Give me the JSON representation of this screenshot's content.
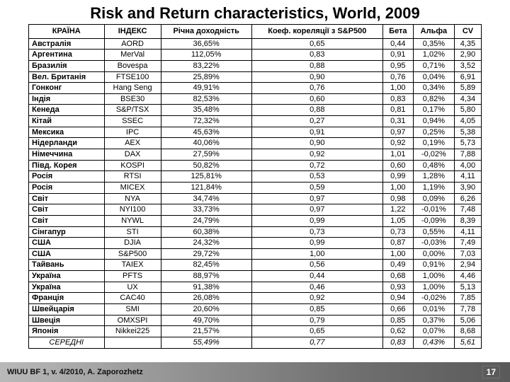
{
  "title": "Risk and Return characteristics, World, 2009",
  "footer": {
    "left": "WIUU BF 1, v. 4/2010, A. Zaporozhetz",
    "page": "17"
  },
  "title_fontsize": 22,
  "table": {
    "headers": [
      "КРАЇНА",
      "ІНДЕКС",
      "Річна доходність",
      "Коеф. кореляції з S&P500",
      "Бета",
      "Альфа",
      "CV"
    ],
    "rows": [
      [
        "Австралія",
        "AORD",
        "36,65%",
        "0,65",
        "0,44",
        "0,35%",
        "4,35"
      ],
      [
        "Аргентина",
        "MerVal",
        "112,05%",
        "0,83",
        "0,91",
        "1,02%",
        "2,90"
      ],
      [
        "Бразилія",
        "Bovespa",
        "83,22%",
        "0,88",
        "0,95",
        "0,71%",
        "3,52"
      ],
      [
        "Вел. Британія",
        "FTSE100",
        "25,89%",
        "0,90",
        "0,76",
        "0,04%",
        "6,91"
      ],
      [
        "Гонконг",
        "Hang Seng",
        "49,91%",
        "0,76",
        "1,00",
        "0,34%",
        "5,89"
      ],
      [
        "Індія",
        "BSE30",
        "82,53%",
        "0,60",
        "0,83",
        "0,82%",
        "4,34"
      ],
      [
        "Кенеда",
        "S&P/TSX",
        "35,48%",
        "0,88",
        "0,81",
        "0,17%",
        "5,80"
      ],
      [
        "Кітай",
        "SSEC",
        "72,32%",
        "0,27",
        "0,31",
        "0,94%",
        "4,05"
      ],
      [
        "Мексика",
        "IPC",
        "45,63%",
        "0,91",
        "0,97",
        "0,25%",
        "5,38"
      ],
      [
        "Нідерланди",
        "AEX",
        "40,06%",
        "0,90",
        "0,92",
        "0,19%",
        "5,73"
      ],
      [
        "Німеччина",
        "DAX",
        "27,59%",
        "0,92",
        "1,01",
        "-0,02%",
        "7,88"
      ],
      [
        "Півд. Корея",
        "KOSPI",
        "50,82%",
        "0,72",
        "0,60",
        "0,48%",
        "4,00"
      ],
      [
        "Росія",
        "RTSI",
        "125,81%",
        "0,53",
        "0,99",
        "1,28%",
        "4,11"
      ],
      [
        "Росія",
        "MICEX",
        "121,84%",
        "0,59",
        "1,00",
        "1,19%",
        "3,90"
      ],
      [
        "Світ",
        "NYA",
        "34,74%",
        "0,97",
        "0,98",
        "0,09%",
        "6,26"
      ],
      [
        "Світ",
        "NYI100",
        "33,73%",
        "0,97",
        "1,22",
        "-0,01%",
        "7,48"
      ],
      [
        "Світ",
        "NYWL",
        "24,79%",
        "0,99",
        "1,05",
        "-0,09%",
        "8,39"
      ],
      [
        "Сінгапур",
        "STI",
        "60,38%",
        "0,73",
        "0,73",
        "0,55%",
        "4,11"
      ],
      [
        "США",
        "DJIA",
        "24,32%",
        "0,99",
        "0,87",
        "-0,03%",
        "7,49"
      ],
      [
        "США",
        "S&P500",
        "29,72%",
        "1,00",
        "1,00",
        "0,00%",
        "7,03"
      ],
      [
        "Тайвань",
        "TAIEX",
        "82,45%",
        "0,56",
        "0,49",
        "0,91%",
        "2,94"
      ],
      [
        "Україна",
        "PFTS",
        "88,97%",
        "0,44",
        "0,68",
        "1,00%",
        "4,46"
      ],
      [
        "Україна",
        "UX",
        "91,38%",
        "0,46",
        "0,93",
        "1,00%",
        "5,13"
      ],
      [
        "Франція",
        "CAC40",
        "26,08%",
        "0,92",
        "0,94",
        "-0,02%",
        "7,85"
      ],
      [
        "Швейцарія",
        "SMI",
        "20,60%",
        "0,85",
        "0,66",
        "0,01%",
        "7,78"
      ],
      [
        "Швеція",
        "OMXSPI",
        "49,70%",
        "0,79",
        "0,85",
        "0,37%",
        "5,06"
      ],
      [
        "Японія",
        "Nikkei225",
        "21,57%",
        "0,65",
        "0,62",
        "0,07%",
        "8,68"
      ]
    ],
    "summary": [
      "СЕРЕДНІ",
      "",
      "55,49%",
      "0,77",
      "0,83",
      "0,43%",
      "5,61"
    ]
  }
}
